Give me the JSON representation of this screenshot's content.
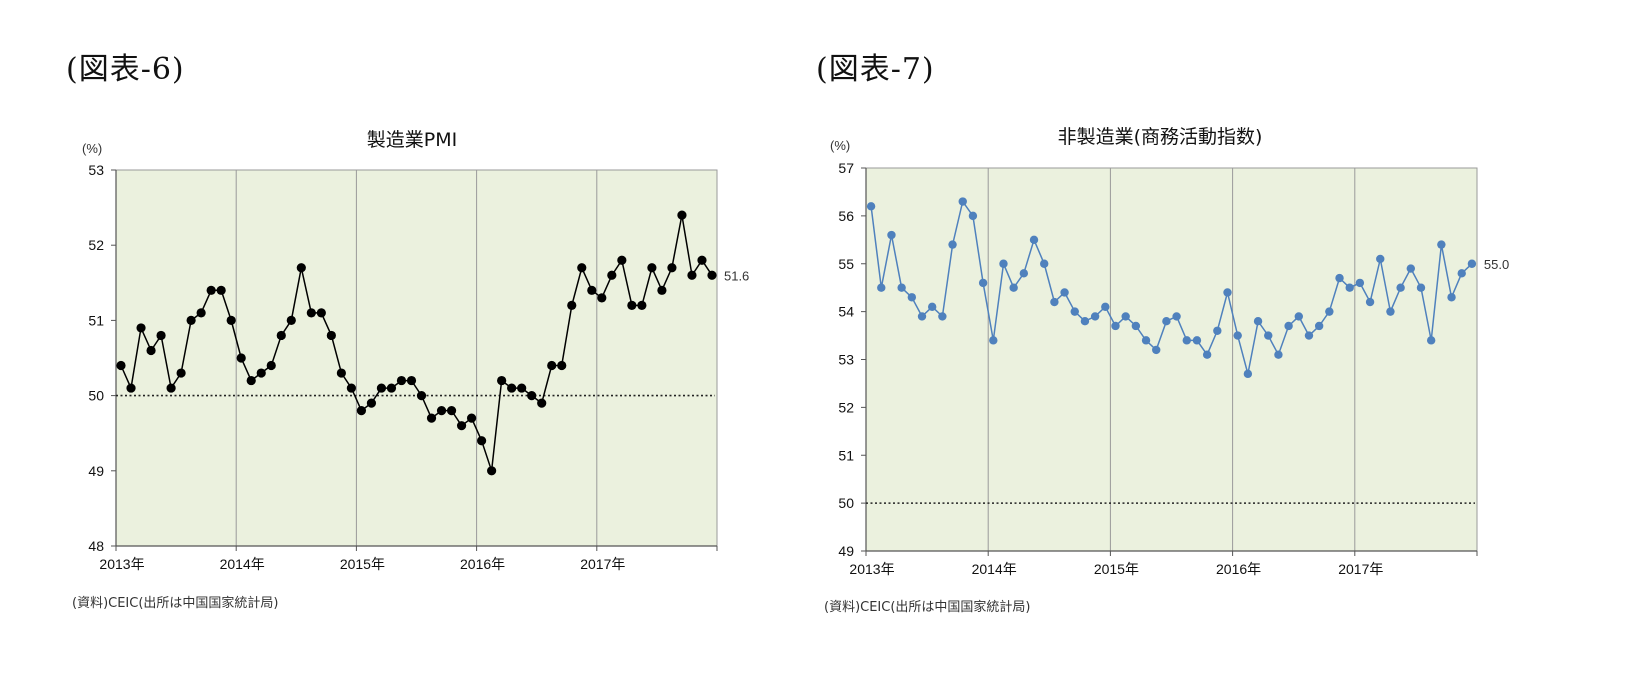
{
  "figure_labels": [
    "(図表-6)",
    "(図表-7)"
  ],
  "chart_data": [
    {
      "type": "line",
      "title": "製造業PMI",
      "unit_label": "(%)",
      "source": "(資料)CEIC(出所は中国国家統計局)",
      "x_tick_labels": [
        "2013年",
        "2014年",
        "2015年",
        "2016年",
        "2017年"
      ],
      "ylim": [
        48,
        53
      ],
      "y_ticks": [
        48,
        49,
        50,
        51,
        52,
        53
      ],
      "reference_line": 50,
      "last_value_label": "51.6",
      "grid": "vertical-year-lines",
      "colors": {
        "line": "#000000",
        "marker": "#000000",
        "plot_bg": "#ebf1de"
      },
      "series": [
        {
          "values": [
            50.4,
            50.1,
            50.9,
            50.6,
            50.8,
            50.1,
            50.3,
            51.0,
            51.1,
            51.4,
            51.4,
            51.0,
            50.5,
            50.2,
            50.3,
            50.4,
            50.8,
            51.0,
            51.7,
            51.1,
            51.1,
            50.8,
            50.3,
            50.1,
            49.8,
            49.9,
            50.1,
            50.1,
            50.2,
            50.2,
            50.0,
            49.7,
            49.8,
            49.8,
            49.6,
            49.7,
            49.4,
            49.0,
            50.2,
            50.1,
            50.1,
            50.0,
            49.9,
            50.4,
            50.4,
            51.2,
            51.7,
            51.4,
            51.3,
            51.6,
            51.8,
            51.2,
            51.2,
            51.7,
            51.4,
            51.7,
            52.4,
            51.6,
            51.8,
            51.6
          ]
        }
      ]
    },
    {
      "type": "line",
      "title": "非製造業(商務活動指数)",
      "unit_label": "(%)",
      "source": "(資料)CEIC(出所は中国国家統計局)",
      "x_tick_labels": [
        "2013年",
        "2014年",
        "2015年",
        "2016年",
        "2017年"
      ],
      "ylim": [
        49,
        57
      ],
      "y_ticks": [
        49,
        50,
        51,
        52,
        53,
        54,
        55,
        56,
        57
      ],
      "reference_line": 50,
      "last_value_label": "55.0",
      "grid": "vertical-year-lines",
      "colors": {
        "line": "#4f81bd",
        "marker": "#4f81bd",
        "plot_bg": "#ebf1de"
      },
      "series": [
        {
          "values": [
            56.2,
            54.5,
            55.6,
            54.5,
            54.3,
            53.9,
            54.1,
            53.9,
            55.4,
            56.3,
            56.0,
            54.6,
            53.4,
            55.0,
            54.5,
            54.8,
            55.5,
            55.0,
            54.2,
            54.4,
            54.0,
            53.8,
            53.9,
            54.1,
            53.7,
            53.9,
            53.7,
            53.4,
            53.2,
            53.8,
            53.9,
            53.4,
            53.4,
            53.1,
            53.6,
            54.4,
            53.5,
            52.7,
            53.8,
            53.5,
            53.1,
            53.7,
            53.9,
            53.5,
            53.7,
            54.0,
            54.7,
            54.5,
            54.6,
            54.2,
            55.1,
            54.0,
            54.5,
            54.9,
            54.5,
            53.4,
            55.4,
            54.3,
            54.8,
            55.0
          ]
        }
      ]
    }
  ]
}
